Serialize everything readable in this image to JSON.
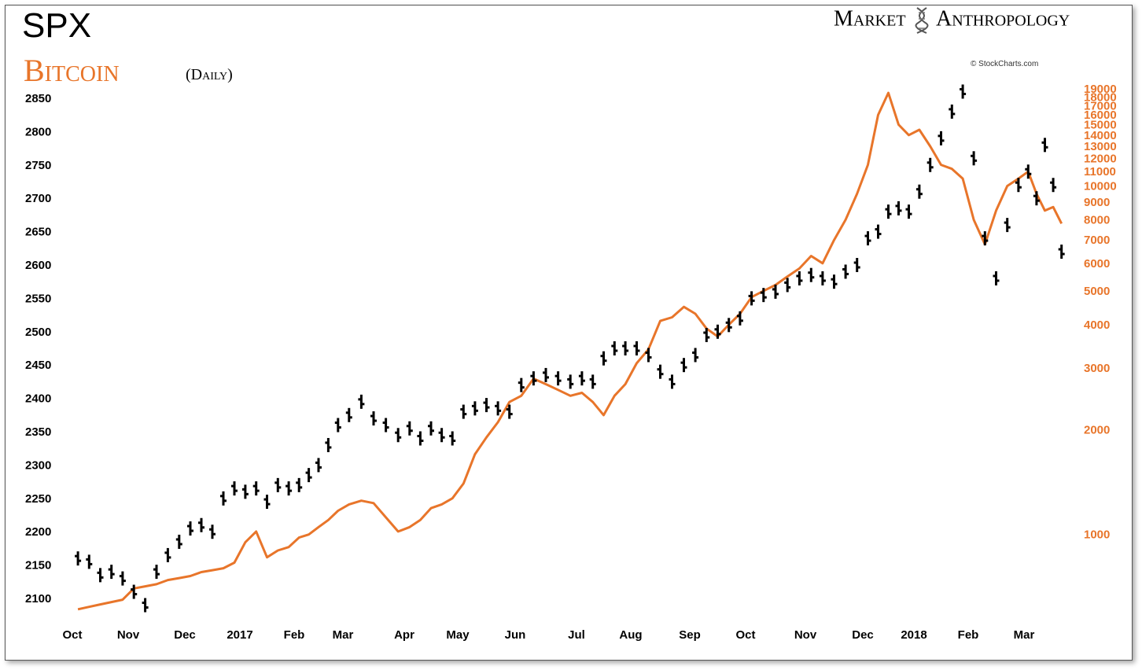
{
  "title": {
    "primary": "SPX",
    "secondary": "Bitcoin",
    "frequency": "(Daily)"
  },
  "brand": {
    "left": "Market",
    "right": "Anthropology"
  },
  "credit": "© StockCharts.com",
  "colors": {
    "spx": "#000000",
    "bitcoin": "#e8752a",
    "frame": "#555555"
  },
  "chart_data": {
    "type": "line",
    "x_labels": [
      "Oct",
      "Nov",
      "Dec",
      "2017",
      "Feb",
      "Mar",
      "Apr",
      "May",
      "Jun",
      "Jul",
      "Aug",
      "Sep",
      "Oct",
      "Nov",
      "Dec",
      "2018",
      "Feb",
      "Mar"
    ],
    "left_axis": {
      "ticks": [
        2100,
        2150,
        2200,
        2250,
        2300,
        2350,
        2400,
        2450,
        2500,
        2550,
        2600,
        2650,
        2700,
        2750,
        2800,
        2850
      ],
      "range": [
        2080,
        2870
      ]
    },
    "right_axis": {
      "scale": "log",
      "ticks": [
        1000,
        2000,
        3000,
        4000,
        5000,
        6000,
        7000,
        8000,
        9000,
        10000,
        11000,
        12000,
        13000,
        14000,
        15000,
        16000,
        17000,
        18000,
        19000
      ],
      "range": [
        600,
        19500
      ]
    },
    "series": [
      {
        "name": "SPX",
        "axis": "left",
        "style": "ohlc-bars",
        "points": [
          [
            "Oct",
            2160
          ],
          [
            "Oct",
            2155
          ],
          [
            "Oct",
            2135
          ],
          [
            "Oct",
            2140
          ],
          [
            "Oct",
            2130
          ],
          [
            "Nov",
            2110
          ],
          [
            "Nov",
            2090
          ],
          [
            "Nov",
            2140
          ],
          [
            "Nov",
            2165
          ],
          [
            "Nov",
            2185
          ],
          [
            "Dec",
            2205
          ],
          [
            "Dec",
            2210
          ],
          [
            "Dec",
            2200
          ],
          [
            "Dec",
            2250
          ],
          [
            "Dec",
            2265
          ],
          [
            "2017",
            2260
          ],
          [
            "2017",
            2265
          ],
          [
            "2017",
            2245
          ],
          [
            "2017",
            2270
          ],
          [
            "2017",
            2265
          ],
          [
            "Feb",
            2270
          ],
          [
            "Feb",
            2285
          ],
          [
            "Feb",
            2300
          ],
          [
            "Feb",
            2330
          ],
          [
            "Feb",
            2360
          ],
          [
            "Mar",
            2375
          ],
          [
            "Mar",
            2395
          ],
          [
            "Mar",
            2370
          ],
          [
            "Mar",
            2360
          ],
          [
            "Mar",
            2345
          ],
          [
            "Apr",
            2355
          ],
          [
            "Apr",
            2340
          ],
          [
            "Apr",
            2355
          ],
          [
            "Apr",
            2345
          ],
          [
            "Apr",
            2340
          ],
          [
            "May",
            2380
          ],
          [
            "May",
            2385
          ],
          [
            "May",
            2390
          ],
          [
            "May",
            2385
          ],
          [
            "May",
            2380
          ],
          [
            "Jun",
            2420
          ],
          [
            "Jun",
            2430
          ],
          [
            "Jun",
            2435
          ],
          [
            "Jun",
            2430
          ],
          [
            "Jun",
            2425
          ],
          [
            "Jul",
            2430
          ],
          [
            "Jul",
            2425
          ],
          [
            "Jul",
            2460
          ],
          [
            "Jul",
            2475
          ],
          [
            "Jul",
            2475
          ],
          [
            "Aug",
            2475
          ],
          [
            "Aug",
            2465
          ],
          [
            "Aug",
            2440
          ],
          [
            "Aug",
            2425
          ],
          [
            "Aug",
            2450
          ],
          [
            "Sep",
            2465
          ],
          [
            "Sep",
            2495
          ],
          [
            "Sep",
            2500
          ],
          [
            "Sep",
            2510
          ],
          [
            "Sep",
            2520
          ],
          [
            "Oct",
            2550
          ],
          [
            "Oct",
            2555
          ],
          [
            "Oct",
            2560
          ],
          [
            "Oct",
            2570
          ],
          [
            "Oct",
            2580
          ],
          [
            "Nov",
            2585
          ],
          [
            "Nov",
            2580
          ],
          [
            "Nov",
            2575
          ],
          [
            "Nov",
            2590
          ],
          [
            "Nov",
            2600
          ],
          [
            "Dec",
            2640
          ],
          [
            "Dec",
            2650
          ],
          [
            "Dec",
            2680
          ],
          [
            "Dec",
            2685
          ],
          [
            "Dec",
            2680
          ],
          [
            "2018",
            2710
          ],
          [
            "2018",
            2750
          ],
          [
            "2018",
            2790
          ],
          [
            "2018",
            2830
          ],
          [
            "2018",
            2860
          ],
          [
            "Feb",
            2760
          ],
          [
            "Feb",
            2640
          ],
          [
            "Feb",
            2580
          ],
          [
            "Feb",
            2660
          ],
          [
            "Feb",
            2720
          ],
          [
            "Mar",
            2740
          ],
          [
            "Mar",
            2700
          ],
          [
            "Mar",
            2780
          ],
          [
            "Mar",
            2720
          ],
          [
            "Mar",
            2620
          ]
        ]
      },
      {
        "name": "Bitcoin",
        "axis": "right",
        "style": "line",
        "points": [
          [
            "Oct",
            610
          ],
          [
            "Oct",
            620
          ],
          [
            "Oct",
            630
          ],
          [
            "Oct",
            640
          ],
          [
            "Oct",
            650
          ],
          [
            "Nov",
            700
          ],
          [
            "Nov",
            710
          ],
          [
            "Nov",
            720
          ],
          [
            "Nov",
            740
          ],
          [
            "Nov",
            750
          ],
          [
            "Dec",
            760
          ],
          [
            "Dec",
            780
          ],
          [
            "Dec",
            790
          ],
          [
            "Dec",
            800
          ],
          [
            "Dec",
            830
          ],
          [
            "2017",
            950
          ],
          [
            "2017",
            1020
          ],
          [
            "2017",
            860
          ],
          [
            "2017",
            900
          ],
          [
            "2017",
            920
          ],
          [
            "Feb",
            980
          ],
          [
            "Feb",
            1000
          ],
          [
            "Feb",
            1050
          ],
          [
            "Feb",
            1100
          ],
          [
            "Feb",
            1170
          ],
          [
            "Mar",
            1220
          ],
          [
            "Mar",
            1250
          ],
          [
            "Mar",
            1230
          ],
          [
            "Mar",
            1120
          ],
          [
            "Mar",
            1020
          ],
          [
            "Apr",
            1050
          ],
          [
            "Apr",
            1100
          ],
          [
            "Apr",
            1190
          ],
          [
            "Apr",
            1220
          ],
          [
            "Apr",
            1270
          ],
          [
            "May",
            1400
          ],
          [
            "May",
            1700
          ],
          [
            "May",
            1900
          ],
          [
            "May",
            2100
          ],
          [
            "May",
            2400
          ],
          [
            "Jun",
            2500
          ],
          [
            "Jun",
            2800
          ],
          [
            "Jun",
            2700
          ],
          [
            "Jun",
            2600
          ],
          [
            "Jun",
            2500
          ],
          [
            "Jul",
            2550
          ],
          [
            "Jul",
            2400
          ],
          [
            "Jul",
            2200
          ],
          [
            "Jul",
            2500
          ],
          [
            "Jul",
            2700
          ],
          [
            "Aug",
            3100
          ],
          [
            "Aug",
            3400
          ],
          [
            "Aug",
            4100
          ],
          [
            "Aug",
            4200
          ],
          [
            "Aug",
            4500
          ],
          [
            "Sep",
            4300
          ],
          [
            "Sep",
            3900
          ],
          [
            "Sep",
            3700
          ],
          [
            "Sep",
            4000
          ],
          [
            "Sep",
            4300
          ],
          [
            "Oct",
            4800
          ],
          [
            "Oct",
            5000
          ],
          [
            "Oct",
            5200
          ],
          [
            "Oct",
            5500
          ],
          [
            "Oct",
            5800
          ],
          [
            "Nov",
            6300
          ],
          [
            "Nov",
            6000
          ],
          [
            "Nov",
            7000
          ],
          [
            "Nov",
            8000
          ],
          [
            "Nov",
            9500
          ],
          [
            "Dec",
            11500
          ],
          [
            "Dec",
            16000
          ],
          [
            "Dec",
            18500
          ],
          [
            "Dec",
            15000
          ],
          [
            "Dec",
            14000
          ],
          [
            "2018",
            14500
          ],
          [
            "2018",
            13000
          ],
          [
            "2018",
            11500
          ],
          [
            "2018",
            11200
          ],
          [
            "2018",
            10500
          ],
          [
            "Feb",
            8000
          ],
          [
            "Feb",
            6800
          ],
          [
            "Feb",
            8500
          ],
          [
            "Feb",
            10000
          ],
          [
            "Feb",
            10500
          ],
          [
            "Mar",
            11000
          ],
          [
            "Mar",
            9500
          ],
          [
            "Mar",
            8500
          ],
          [
            "Mar",
            8700
          ],
          [
            "Mar",
            7800
          ]
        ]
      }
    ],
    "grid": false
  }
}
